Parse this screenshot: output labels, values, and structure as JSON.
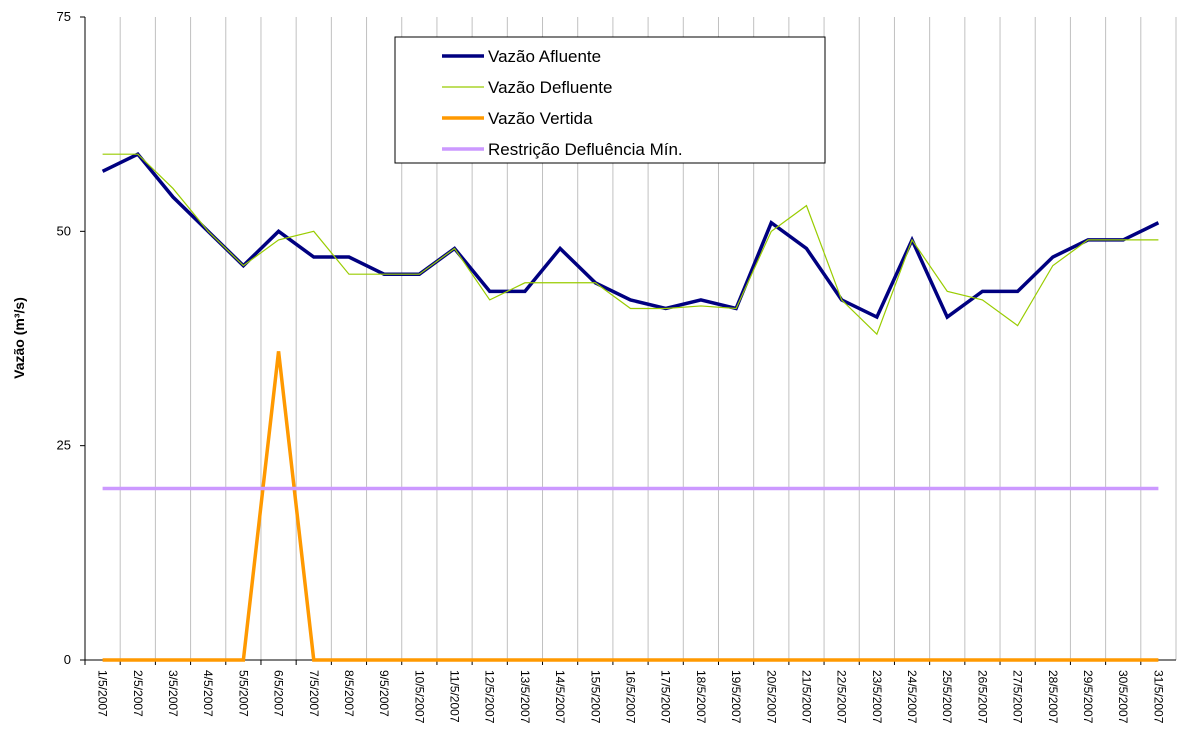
{
  "chart_data": {
    "type": "line",
    "y_label": "Vazão (m³/s)",
    "categories": [
      "1/5/2007",
      "2/5/2007",
      "3/5/2007",
      "4/5/2007",
      "5/5/2007",
      "6/5/2007",
      "7/5/2007",
      "8/5/2007",
      "9/5/2007",
      "10/5/2007",
      "11/5/2007",
      "12/5/2007",
      "13/5/2007",
      "14/5/2007",
      "15/5/2007",
      "16/5/2007",
      "17/5/2007",
      "18/5/2007",
      "19/5/2007",
      "20/5/2007",
      "21/5/2007",
      "22/5/2007",
      "23/5/2007",
      "24/5/2007",
      "25/5/2007",
      "26/5/2007",
      "27/5/2007",
      "28/5/2007",
      "29/5/2007",
      "30/5/2007",
      "31/5/2007"
    ],
    "series": [
      {
        "name": "Vazão Afluente",
        "color": "#000080",
        "width": 3.5,
        "values": [
          57,
          59,
          54,
          50,
          46,
          50,
          47,
          47,
          45,
          45,
          48,
          43,
          43,
          48,
          44,
          42,
          41,
          42,
          41,
          51,
          48,
          42,
          40,
          49,
          40,
          43,
          43,
          47,
          49,
          49,
          51
        ]
      },
      {
        "name": "Vazão Defluente",
        "color": "#99cc00",
        "width": 1.2,
        "values": [
          59,
          59,
          55,
          50,
          46,
          49,
          50,
          45,
          45,
          45,
          48,
          42,
          44,
          44,
          44,
          41,
          41,
          41.3,
          41,
          50,
          53,
          42,
          38,
          49,
          43,
          42,
          39,
          46,
          49,
          49,
          49
        ]
      },
      {
        "name": "Vazão Vertida",
        "color": "#ff9900",
        "width": 3.5,
        "values": [
          0,
          0,
          0,
          0,
          0,
          36,
          0,
          0,
          0,
          0,
          0,
          0,
          0,
          0,
          0,
          0,
          0,
          0,
          0,
          0,
          0,
          0,
          0,
          0,
          0,
          0,
          0,
          0,
          0,
          0,
          0
        ]
      },
      {
        "name": "Restrição Defluência Mín.",
        "color": "#cc99ff",
        "width": 3.5,
        "values": [
          20,
          20,
          20,
          20,
          20,
          20,
          20,
          20,
          20,
          20,
          20,
          20,
          20,
          20,
          20,
          20,
          20,
          20,
          20,
          20,
          20,
          20,
          20,
          20,
          20,
          20,
          20,
          20,
          20,
          20,
          20
        ]
      }
    ],
    "ylim": [
      0,
      75
    ],
    "yticks": [
      0,
      25,
      50,
      75
    ],
    "x_grid": true
  }
}
